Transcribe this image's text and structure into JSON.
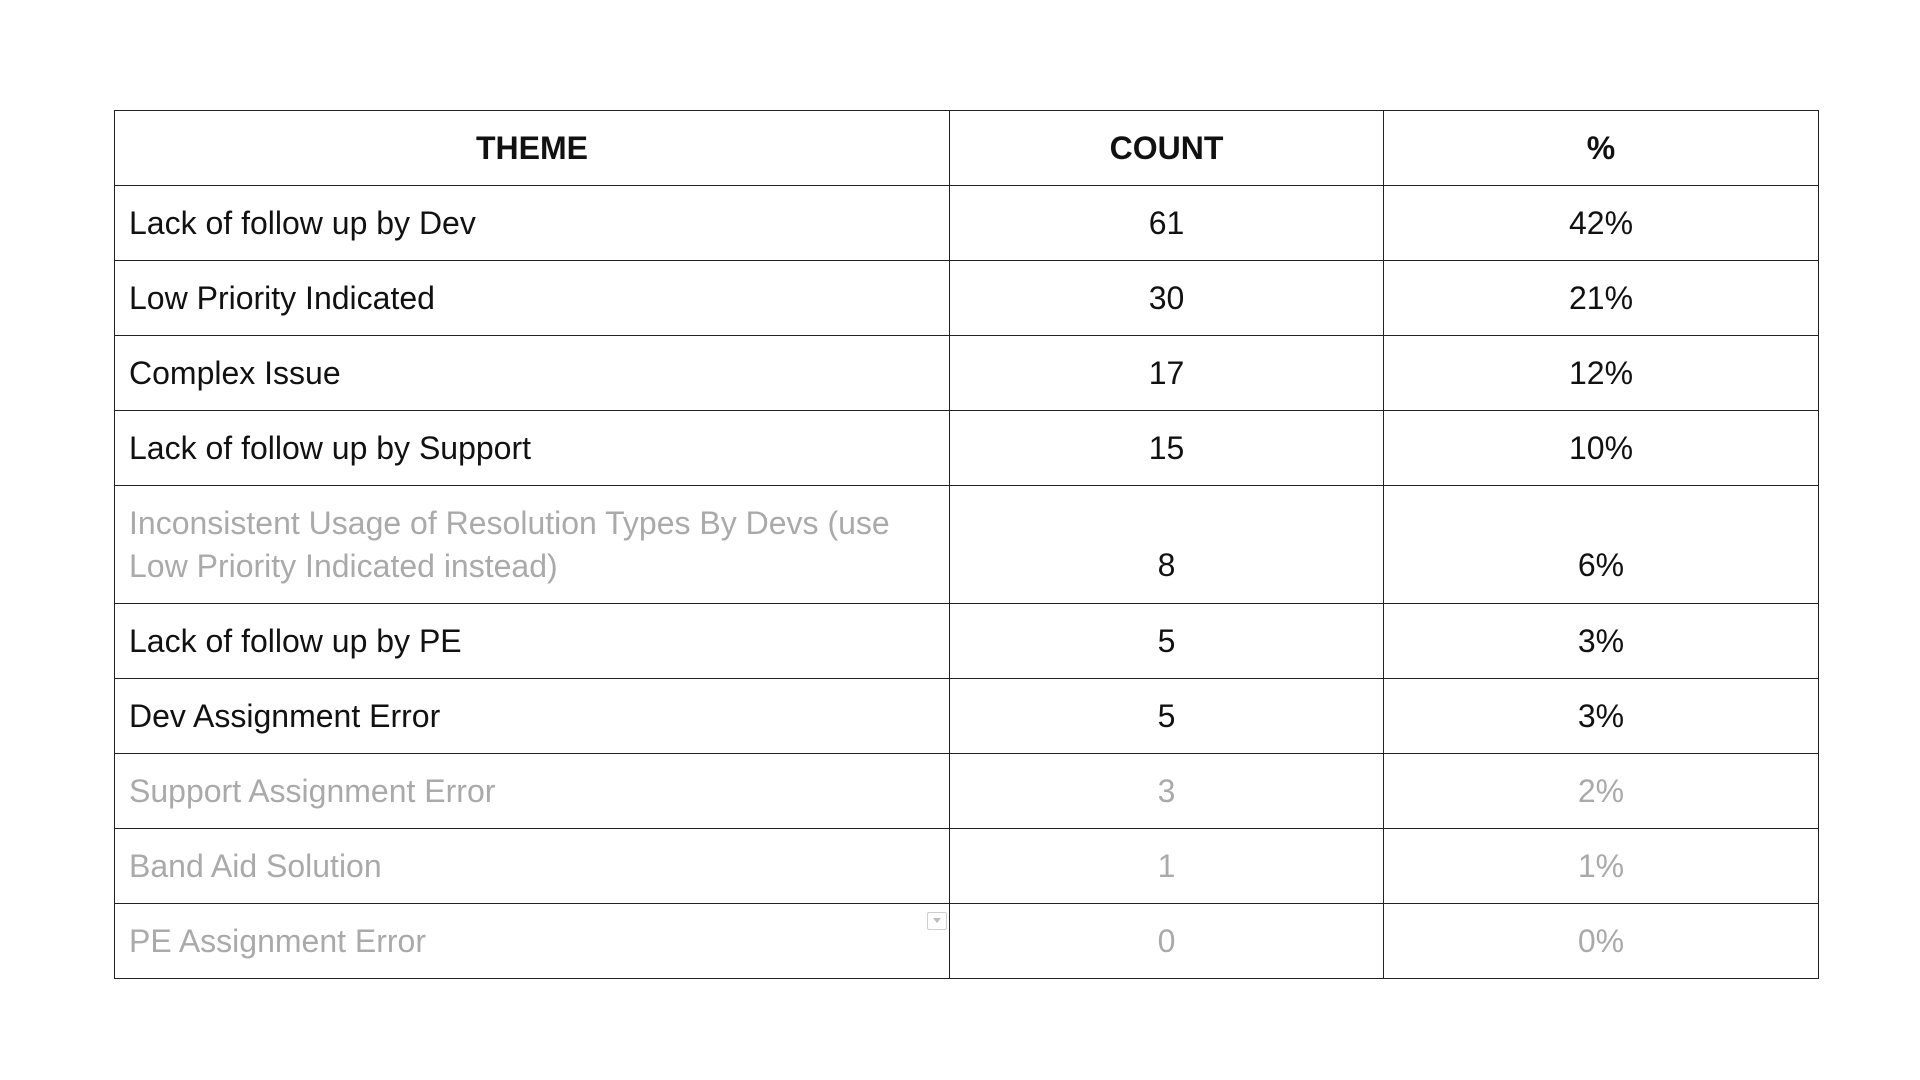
{
  "table": {
    "headers": {
      "theme": "THEME",
      "count": "COUNT",
      "percent": "%"
    },
    "rows": [
      {
        "theme": "Lack of follow up by Dev",
        "count": "61",
        "percent": "42%",
        "style": "normal"
      },
      {
        "theme": "Low Priority Indicated",
        "count": "30",
        "percent": "21%",
        "style": "normal"
      },
      {
        "theme": "Complex Issue",
        "count": "17",
        "percent": "12%",
        "style": "normal"
      },
      {
        "theme": "Lack of follow up by Support",
        "count": "15",
        "percent": "10%",
        "style": "normal"
      },
      {
        "theme": "Inconsistent Usage of Resolution Types By Devs (use Low Priority Indicated instead)",
        "count": "8",
        "percent": "6%",
        "style": "muted-theme"
      },
      {
        "theme": "Lack of follow up by PE",
        "count": "5",
        "percent": "3%",
        "style": "normal"
      },
      {
        "theme": "Dev Assignment Error",
        "count": "5",
        "percent": "3%",
        "style": "normal"
      },
      {
        "theme": "Support Assignment Error",
        "count": "3",
        "percent": "2%",
        "style": "muted"
      },
      {
        "theme": "Band Aid Solution",
        "count": "1",
        "percent": "1%",
        "style": "muted"
      },
      {
        "theme": "PE Assignment Error",
        "count": "0",
        "percent": "0%",
        "style": "muted"
      }
    ]
  },
  "colors": {
    "text": "#111111",
    "muted_text": "#aaaaaa",
    "border": "#222222"
  },
  "icons": {
    "filter": "dropdown-filter-icon"
  }
}
